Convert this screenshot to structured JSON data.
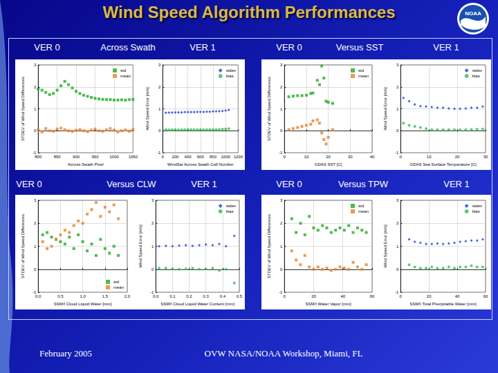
{
  "slide": {
    "title": "Wind Speed Algorithm Performances",
    "logo": "NOAA",
    "labels_top": [
      "VER 0",
      "Across Swath",
      "VER 1",
      "VER 0",
      "Versus SST",
      "VER 1"
    ],
    "labels_bottom": [
      "VER 0",
      "Versus CLW",
      "VER 1",
      "VER 0",
      "Versus TPW",
      "VER 1"
    ],
    "footer_left": "February 2005",
    "footer_center": "OVW NASA/NOAA Workshop, Miami, FL"
  },
  "chart_data": [
    {
      "type": "scatter",
      "x_label": "Across Swath Pixel",
      "y_label": "STDEV of Wind Speed Differences",
      "xlim": [
        800,
        1050
      ],
      "xticks": [
        800,
        850,
        900,
        950,
        1000,
        1050
      ],
      "ylim": [
        -1,
        3
      ],
      "yticks": [
        -1,
        0,
        1,
        2,
        3
      ],
      "grid": true,
      "legend": "upper right",
      "series": [
        {
          "name": "std",
          "color": "#22aa22",
          "marker": "square",
          "x": [
            800,
            810,
            820,
            830,
            840,
            850,
            860,
            870,
            880,
            890,
            900,
            910,
            920,
            930,
            940,
            950,
            960,
            970,
            980,
            990,
            1000,
            1010,
            1020,
            1030,
            1040,
            1050
          ],
          "values": [
            1.9,
            1.85,
            1.75,
            1.65,
            1.7,
            1.85,
            2.05,
            2.25,
            2.1,
            1.95,
            1.8,
            1.7,
            1.62,
            1.57,
            1.52,
            1.48,
            1.45,
            1.43,
            1.42,
            1.42,
            1.4,
            1.4,
            1.41,
            1.4,
            1.42,
            1.43
          ]
        },
        {
          "name": "mean",
          "color": "#e8802a",
          "marker": "square",
          "x": [
            800,
            810,
            820,
            830,
            840,
            850,
            860,
            870,
            880,
            890,
            900,
            910,
            920,
            930,
            940,
            950,
            960,
            970,
            980,
            990,
            1000,
            1010,
            1020,
            1030,
            1040,
            1050
          ],
          "values": [
            0.05,
            -0.05,
            0.1,
            0,
            -0.02,
            0.08,
            0.12,
            0.05,
            0,
            -0.03,
            0.02,
            0.06,
            0,
            -0.04,
            0.03,
            0.08,
            0,
            -0.02,
            0.05,
            0.1,
            0.03,
            -0.05,
            0,
            0.04,
            -0.02,
            0.06
          ]
        }
      ]
    },
    {
      "type": "scatter",
      "x_label": "WindSat Across Swath Cell Number",
      "y_label": "Wind Speed Error [m/s]",
      "xlim": [
        0,
        1200
      ],
      "xticks": [
        0,
        200,
        400,
        600,
        800,
        1000,
        1200
      ],
      "ylim": [
        -1,
        3
      ],
      "yticks": [
        -1,
        0,
        1,
        2,
        3
      ],
      "grid": true,
      "legend": "upper right",
      "series": [
        {
          "name": "stdev",
          "color": "#2040d0",
          "marker": "diamond",
          "x": [
            50,
            100,
            150,
            200,
            250,
            300,
            350,
            400,
            450,
            500,
            550,
            600,
            650,
            700,
            750,
            800,
            850,
            900,
            950,
            1000,
            1050
          ],
          "values": [
            0.82,
            0.83,
            0.83,
            0.84,
            0.84,
            0.84,
            0.85,
            0.85,
            0.85,
            0.85,
            0.86,
            0.86,
            0.86,
            0.87,
            0.87,
            0.88,
            0.88,
            0.89,
            0.9,
            0.92,
            0.95
          ]
        },
        {
          "name": "bias",
          "color": "#33bb55",
          "marker": "circle",
          "x": [
            50,
            100,
            150,
            200,
            250,
            300,
            350,
            400,
            450,
            500,
            550,
            600,
            650,
            700,
            750,
            800,
            850,
            900,
            950,
            1000,
            1050
          ],
          "values": [
            0.05,
            0.04,
            0.05,
            0.05,
            0.04,
            0.05,
            0.05,
            0.06,
            0.05,
            0.05,
            0.05,
            0.06,
            0.05,
            0.05,
            0.06,
            0.05,
            0.06,
            0.06,
            0.07,
            0.08,
            0.1
          ]
        }
      ]
    },
    {
      "type": "scatter",
      "x_label": "GDAS SST [C]",
      "y_label": "STDEV of Wind Speed Differences",
      "xlim": [
        0,
        40
      ],
      "xticks": [
        0,
        10,
        20,
        30,
        40
      ],
      "ylim": [
        -1,
        3
      ],
      "yticks": [
        -1,
        0,
        1,
        2,
        3
      ],
      "grid": true,
      "legend": "upper right",
      "series": [
        {
          "name": "std",
          "color": "#22aa22",
          "marker": "square",
          "x": [
            2,
            4,
            6,
            8,
            10,
            12,
            13,
            15,
            16,
            17,
            18,
            19,
            20,
            22
          ],
          "values": [
            1.55,
            1.58,
            1.6,
            1.6,
            1.62,
            1.7,
            1.72,
            2.3,
            2.1,
            2.95,
            2.4,
            1.35,
            1.3,
            1.25
          ]
        },
        {
          "name": "mean",
          "color": "#e8802a",
          "marker": "square",
          "x": [
            2,
            4,
            6,
            8,
            10,
            12,
            13,
            15,
            16,
            17,
            18,
            19,
            20,
            22
          ],
          "values": [
            0.05,
            0.1,
            0.15,
            0.2,
            0.25,
            0.3,
            0.45,
            0.5,
            0.35,
            -0.1,
            -0.4,
            -0.6,
            -0.3,
            0.05
          ]
        }
      ]
    },
    {
      "type": "scatter",
      "x_label": "GDAS Sea Surface Temperature [C]",
      "y_label": "Wind Speed Error [m/s]",
      "xlim": [
        0,
        30
      ],
      "xticks": [
        0,
        10,
        20,
        30
      ],
      "ylim": [
        -1,
        3
      ],
      "yticks": [
        -1,
        0,
        1,
        2,
        3
      ],
      "grid": true,
      "legend": "upper right",
      "series": [
        {
          "name": "stdev",
          "color": "#2040d0",
          "marker": "diamond",
          "x": [
            1,
            3,
            5,
            7,
            9,
            11,
            13,
            15,
            17,
            19,
            21,
            23,
            25,
            27,
            29
          ],
          "values": [
            1.5,
            1.35,
            1.2,
            1.12,
            1.1,
            1.08,
            1.05,
            1.05,
            1.02,
            1.0,
            1.0,
            1.02,
            1.05,
            1.05,
            1.1
          ]
        },
        {
          "name": "bias",
          "color": "#33bb55",
          "marker": "circle",
          "x": [
            1,
            3,
            5,
            7,
            9,
            11,
            13,
            15,
            17,
            19,
            21,
            23,
            25,
            27,
            29
          ],
          "values": [
            0.35,
            0.25,
            0.2,
            0.15,
            0.1,
            0.05,
            0.05,
            0.05,
            0.05,
            0.05,
            0.04,
            0.05,
            0.06,
            0.07,
            0.08
          ]
        }
      ]
    },
    {
      "type": "scatter",
      "x_label": "SSM/I Cloud Liquid Water [mm]",
      "y_label": "STDEV of Wind Speed Differences",
      "xlim": [
        0,
        2
      ],
      "xticks": [
        {
          "value": 0,
          "label": "0.0"
        },
        0.5,
        {
          "value": 1,
          "label": "1.0"
        },
        1.5,
        {
          "value": 2,
          "label": "2.0"
        }
      ],
      "ylim": [
        -1,
        3
      ],
      "yticks": [
        -1,
        0,
        1,
        2,
        3
      ],
      "grid": true,
      "legend": "lower right",
      "series": [
        {
          "name": "std",
          "color": "#22aa22",
          "marker": "square",
          "x": [
            0.1,
            0.2,
            0.3,
            0.4,
            0.5,
            0.6,
            0.7,
            0.8,
            0.9,
            1.0,
            1.1,
            1.2,
            1.3,
            1.4,
            1.5,
            1.6,
            1.7,
            1.8
          ],
          "values": [
            1.5,
            1.6,
            1.4,
            1.3,
            1.2,
            1.1,
            1.4,
            0.9,
            1.5,
            1.2,
            0.8,
            1.1,
            0.6,
            1.3,
            0.9,
            0.7,
            1.0,
            0.6
          ]
        },
        {
          "name": "mean",
          "color": "#e8802a",
          "marker": "square",
          "x": [
            0.1,
            0.2,
            0.3,
            0.4,
            0.5,
            0.6,
            0.7,
            0.8,
            0.9,
            1.0,
            1.1,
            1.2,
            1.3,
            1.4,
            1.5,
            1.6,
            1.7,
            1.8
          ],
          "values": [
            1.2,
            0.9,
            1.0,
            1.3,
            1.5,
            1.7,
            1.6,
            1.9,
            2.1,
            2.0,
            2.4,
            2.6,
            2.9,
            2.3,
            2.7,
            2.5,
            2.8,
            2.2
          ]
        }
      ]
    },
    {
      "type": "scatter",
      "x_label": "SSM/I Cloud Liquid Water Content [mm]",
      "y_label": "Wind Speed Error [m/s]",
      "xlim": [
        0,
        0.5
      ],
      "xticks": [
        {
          "value": 0,
          "label": "0.0"
        },
        0.1,
        0.2,
        0.3,
        0.4,
        0.5
      ],
      "ylim": [
        -1,
        3
      ],
      "yticks": [
        -1,
        0,
        1,
        2,
        3
      ],
      "grid": true,
      "legend": "upper right",
      "series": [
        {
          "name": "stdev",
          "color": "#2040d0",
          "marker": "diamond",
          "x": [
            0.02,
            0.06,
            0.1,
            0.14,
            0.18,
            0.22,
            0.26,
            0.3,
            0.34,
            0.38,
            0.42,
            0.47
          ],
          "values": [
            1.0,
            1.02,
            1.0,
            1.03,
            1.05,
            1.02,
            1.05,
            1.08,
            1.05,
            1.1,
            1.0,
            1.45
          ]
        },
        {
          "name": "bias",
          "color": "#33bb55",
          "marker": "circle",
          "x": [
            0.02,
            0.06,
            0.1,
            0.14,
            0.18,
            0.22,
            0.26,
            0.3,
            0.34,
            0.38,
            0.42,
            0.47
          ],
          "values": [
            0.05,
            0.05,
            0.02,
            0.0,
            0.02,
            0.05,
            0.0,
            0.02,
            0.05,
            -0.05,
            0.0,
            -0.6
          ]
        }
      ]
    },
    {
      "type": "scatter",
      "x_label": "SSM/I Water Vapor [mm]",
      "y_label": "STDEV of Wind Speed Differences",
      "xlim": [
        0,
        60
      ],
      "xticks": [
        0,
        20,
        40,
        60
      ],
      "ylim": [
        -1,
        3
      ],
      "yticks": [
        -1,
        0,
        1,
        2,
        3
      ],
      "grid": true,
      "legend": "upper right",
      "series": [
        {
          "name": "std",
          "color": "#22aa22",
          "marker": "square",
          "x": [
            5,
            8,
            11,
            14,
            17,
            20,
            23,
            26,
            29,
            32,
            35,
            38,
            41,
            44,
            47,
            50,
            53,
            56
          ],
          "values": [
            2.2,
            1.6,
            2.0,
            1.5,
            2.3,
            1.8,
            1.7,
            1.9,
            1.8,
            1.6,
            1.7,
            1.8,
            1.7,
            1.9,
            1.6,
            1.8,
            1.7,
            1.6
          ]
        },
        {
          "name": "mean",
          "color": "#e8802a",
          "marker": "square",
          "x": [
            5,
            8,
            11,
            14,
            17,
            20,
            23,
            26,
            29,
            32,
            35,
            38,
            41,
            44,
            47,
            50,
            53,
            56
          ],
          "values": [
            0.8,
            0.4,
            0.2,
            0.6,
            0.1,
            0.0,
            0.1,
            0.0,
            0.05,
            -0.05,
            0.0,
            0.1,
            0.05,
            0.0,
            0.3,
            0.1,
            0.0,
            0.2
          ]
        }
      ]
    },
    {
      "type": "scatter",
      "x_label": "SSM/I Total Precipitable Water [mm]",
      "y_label": "Wind Speed Error [m/s]",
      "xlim": [
        0,
        60
      ],
      "xticks": [
        0,
        20,
        40,
        60
      ],
      "ylim": [
        -1,
        3
      ],
      "yticks": [
        -1,
        0,
        1,
        2,
        3
      ],
      "grid": true,
      "legend": "upper right",
      "series": [
        {
          "name": "stdev",
          "color": "#2040d0",
          "marker": "diamond",
          "x": [
            6,
            10,
            14,
            18,
            22,
            26,
            30,
            34,
            38,
            42,
            46,
            50,
            54,
            58
          ],
          "values": [
            1.3,
            1.2,
            1.15,
            1.1,
            1.1,
            1.12,
            1.1,
            1.12,
            1.15,
            1.2,
            1.22,
            1.25,
            1.25,
            1.3
          ]
        },
        {
          "name": "bias",
          "color": "#33bb55",
          "marker": "circle",
          "x": [
            6,
            10,
            14,
            18,
            22,
            26,
            30,
            34,
            38,
            42,
            46,
            50,
            54,
            58
          ],
          "values": [
            0.2,
            0.1,
            0.05,
            0.05,
            0.1,
            0.05,
            0.05,
            0.1,
            0.05,
            0.1,
            0.1,
            0.15,
            0.1,
            0.1
          ]
        }
      ]
    }
  ]
}
